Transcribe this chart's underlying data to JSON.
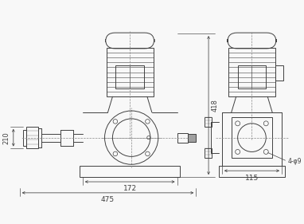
{
  "bg_color": "#f8f8f8",
  "line_color": "#404040",
  "dim_color": "#404040",
  "dim_418": "418",
  "dim_210": "210",
  "dim_172": "172",
  "dim_475": "475",
  "dim_115": "115",
  "dim_4phi9": "4-φ9"
}
